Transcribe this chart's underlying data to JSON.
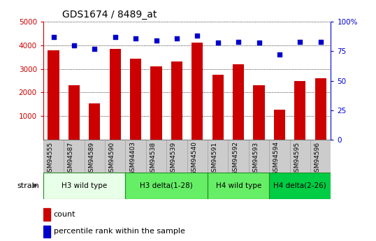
{
  "title": "GDS1674 / 8489_at",
  "categories": [
    "GSM94555",
    "GSM94587",
    "GSM94589",
    "GSM94590",
    "GSM94403",
    "GSM94538",
    "GSM94539",
    "GSM94540",
    "GSM94591",
    "GSM94592",
    "GSM94593",
    "GSM94594",
    "GSM94595",
    "GSM94596"
  ],
  "bar_values": [
    3800,
    2320,
    1550,
    3860,
    3420,
    3100,
    3310,
    4110,
    2760,
    3190,
    2320,
    1270,
    2480,
    2600
  ],
  "dot_values": [
    87,
    80,
    77,
    87,
    86,
    84,
    86,
    88,
    82,
    83,
    82,
    72,
    83,
    83
  ],
  "bar_color": "#cc0000",
  "dot_color": "#0000cc",
  "ylim_left": [
    0,
    5000
  ],
  "ylim_right": [
    0,
    100
  ],
  "yticks_left": [
    1000,
    2000,
    3000,
    4000,
    5000
  ],
  "yticks_right": [
    0,
    25,
    50,
    75,
    100
  ],
  "left_tick_color": "#cc0000",
  "right_tick_color": "#0000cc",
  "strain_groups": [
    {
      "label": "H3 wild type",
      "start": 0,
      "end": 3,
      "color": "#e8ffe8"
    },
    {
      "label": "H3 delta(1-28)",
      "start": 4,
      "end": 7,
      "color": "#66ee66"
    },
    {
      "label": "H4 wild type",
      "start": 8,
      "end": 10,
      "color": "#66ee66"
    },
    {
      "label": "H4 delta(2-26)",
      "start": 11,
      "end": 13,
      "color": "#00cc44"
    }
  ],
  "strain_label": "strain",
  "legend_count": "count",
  "legend_pct": "percentile rank within the sample",
  "tick_bg_color": "#cccccc",
  "tick_border_color": "#999999",
  "strain_border_color": "#228822",
  "grid_color": "#000000",
  "title_fontsize": 10,
  "bar_fontsize": 6.5,
  "legend_fontsize": 8,
  "strain_fontsize": 7.5
}
